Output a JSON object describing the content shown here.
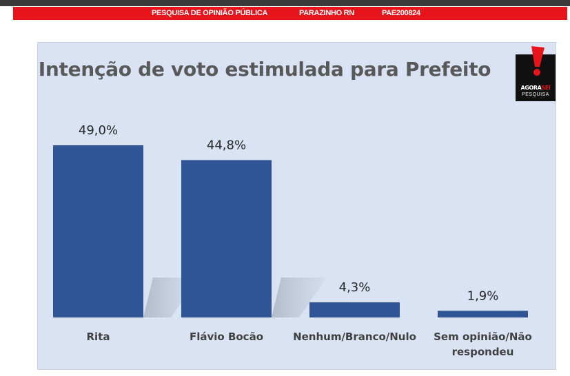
{
  "header": {
    "title": "PESQUISA DE OPINIÃO PÚBLICA",
    "location": "PARAZINHO RN",
    "code": "PAE200824"
  },
  "logo": {
    "brand_main": "AGORA",
    "brand_accent": "SEI",
    "brand_sub": "PESQUISA",
    "icon": "exclamation-icon",
    "accent_color": "#e8141b"
  },
  "colors": {
    "bar": "#2f5597",
    "panel": "#dae3f3",
    "header": "#e8141b"
  },
  "chart_data": {
    "type": "bar",
    "title": "Intenção de voto estimulada para Prefeito",
    "categories": [
      "Rita",
      "Flávio Bocão",
      "Nenhum/Branco/Nulo",
      "Sem opinião/Não respondeu"
    ],
    "category_lines": [
      [
        "Rita"
      ],
      [
        "Flávio Bocão"
      ],
      [
        "Nenhum/Branco/Nulo"
      ],
      [
        "Sem opinião/Não",
        "respondeu"
      ]
    ],
    "values": [
      49.0,
      44.8,
      4.3,
      1.9
    ],
    "data_labels": [
      "49,0%",
      "44,8%",
      "4,3%",
      "1,9%"
    ],
    "ylim": [
      0,
      49.0
    ],
    "grid": false,
    "legend": "none"
  }
}
